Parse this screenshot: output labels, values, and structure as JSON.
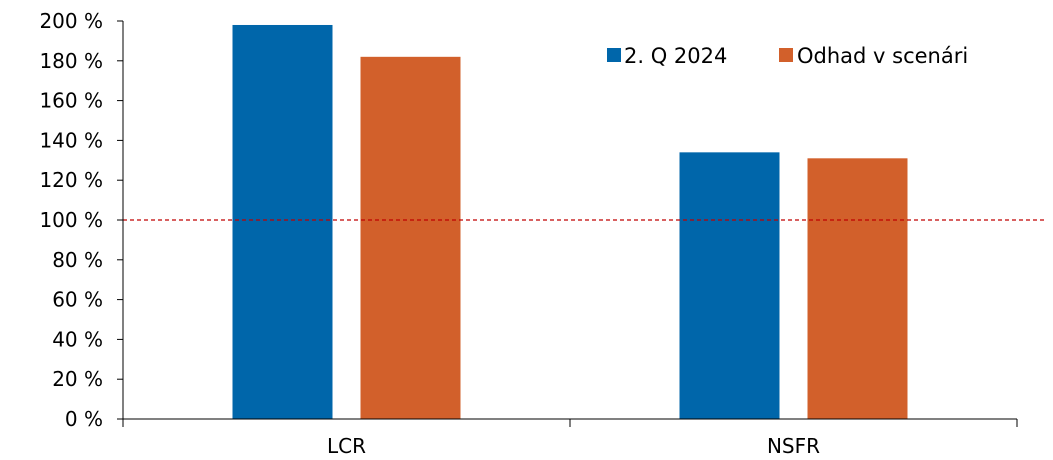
{
  "chart_data": {
    "type": "bar",
    "categories": [
      "LCR",
      "NSFR"
    ],
    "series": [
      {
        "name": "2. Q 2024",
        "values": [
          198,
          134
        ],
        "color": "#0066AA"
      },
      {
        "name": "Odhad v scenári",
        "values": [
          182,
          131
        ],
        "color": "#D2602B"
      }
    ],
    "ylim": [
      0,
      200
    ],
    "yticks": [
      0,
      20,
      40,
      60,
      80,
      100,
      120,
      140,
      160,
      180,
      200
    ],
    "ytick_suffix": " %",
    "reference_line": {
      "value": 100,
      "color": "#C00000",
      "style": "dashed"
    },
    "legend_position": "top-right",
    "grid": false
  }
}
